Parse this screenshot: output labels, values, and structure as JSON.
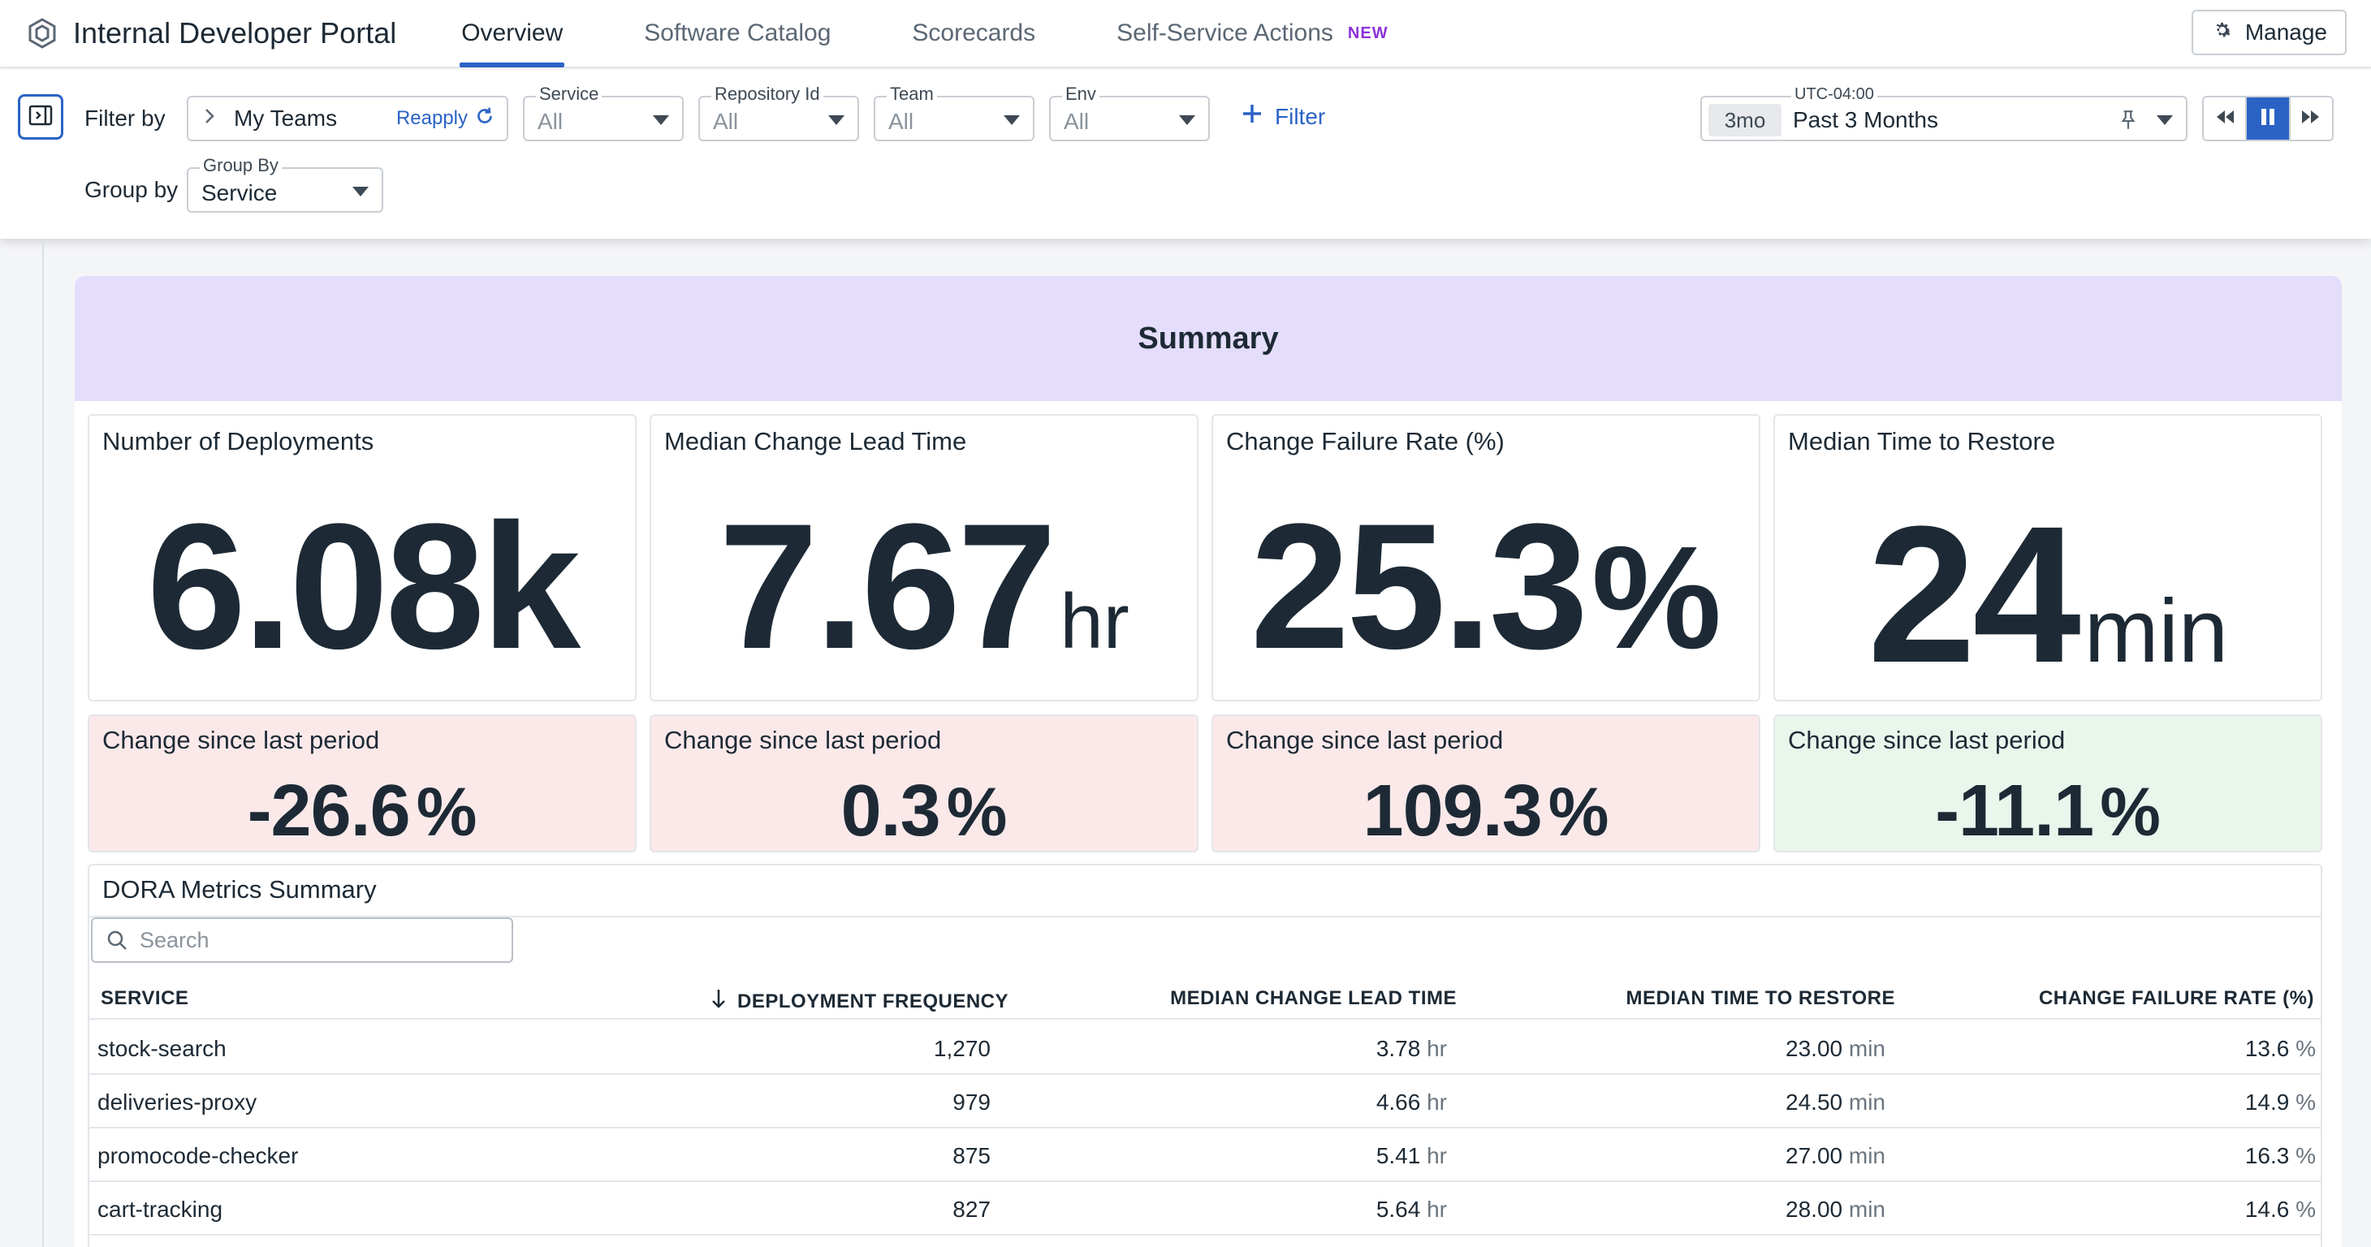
{
  "app": {
    "title": "Internal Developer Portal"
  },
  "nav": {
    "tabs": [
      {
        "label": "Overview",
        "active": true
      },
      {
        "label": "Software Catalog",
        "active": false
      },
      {
        "label": "Scorecards",
        "active": false
      },
      {
        "label": "Self-Service Actions",
        "active": false,
        "badge": "NEW"
      }
    ],
    "manage_label": "Manage"
  },
  "filters": {
    "filter_by_label": "Filter by",
    "my_teams": {
      "label": "My Teams",
      "action": "Reapply"
    },
    "selects": [
      {
        "legend": "Service",
        "value": "All"
      },
      {
        "legend": "Repository Id",
        "value": "All"
      },
      {
        "legend": "Team",
        "value": "All"
      },
      {
        "legend": "Env",
        "value": "All"
      }
    ],
    "add_filter_label": "Filter",
    "group_by_label": "Group by",
    "group_by": {
      "legend": "Group By",
      "value": "Service"
    },
    "time": {
      "timezone": "UTC-04:00",
      "chip": "3mo",
      "value": "Past 3 Months"
    }
  },
  "summary": {
    "title": "Summary",
    "cards": [
      {
        "title": "Number of Deployments",
        "value": "6.08k",
        "unit": ""
      },
      {
        "title": "Median Change Lead Time",
        "value": "7.67",
        "unit": "hr"
      },
      {
        "title": "Change Failure Rate (%)",
        "value": "25.3",
        "unit": "%"
      },
      {
        "title": "Median Time to Restore",
        "value": "24",
        "unit": "min"
      }
    ],
    "changes": [
      {
        "title": "Change since last period",
        "value": "-26.6",
        "unit": "%",
        "status": "bad"
      },
      {
        "title": "Change since last period",
        "value": "0.3",
        "unit": "%",
        "status": "bad"
      },
      {
        "title": "Change since last period",
        "value": "109.3",
        "unit": "%",
        "status": "bad"
      },
      {
        "title": "Change since last period",
        "value": "-11.1",
        "unit": "%",
        "status": "good"
      }
    ]
  },
  "dora_table": {
    "title": "DORA Metrics Summary",
    "search_placeholder": "Search",
    "columns": [
      "SERVICE",
      "DEPLOYMENT FREQUENCY",
      "MEDIAN CHANGE LEAD TIME",
      "MEDIAN TIME TO RESTORE",
      "CHANGE FAILURE RATE (%)"
    ],
    "sort_column": "DEPLOYMENT FREQUENCY",
    "rows": [
      {
        "service": "stock-search",
        "deploy_freq": "1,270",
        "lead_time": "3.78",
        "lead_unit": "hr",
        "restore": "23.00",
        "restore_unit": "min",
        "cfr": "13.6",
        "cfr_unit": "%"
      },
      {
        "service": "deliveries-proxy",
        "deploy_freq": "979",
        "lead_time": "4.66",
        "lead_unit": "hr",
        "restore": "24.50",
        "restore_unit": "min",
        "cfr": "14.9",
        "cfr_unit": "%"
      },
      {
        "service": "promocode-checker",
        "deploy_freq": "875",
        "lead_time": "5.41",
        "lead_unit": "hr",
        "restore": "27.00",
        "restore_unit": "min",
        "cfr": "16.3",
        "cfr_unit": "%"
      },
      {
        "service": "cart-tracking",
        "deploy_freq": "827",
        "lead_time": "5.64",
        "lead_unit": "hr",
        "restore": "28.00",
        "restore_unit": "min",
        "cfr": "14.6",
        "cfr_unit": "%"
      }
    ]
  },
  "colors": {
    "accent": "#2b63c5",
    "summary_bg": "#e4ddfb",
    "bad_bg": "#fbe9ea",
    "good_bg": "#e9f6ec",
    "new_badge": "#8c32d8"
  }
}
